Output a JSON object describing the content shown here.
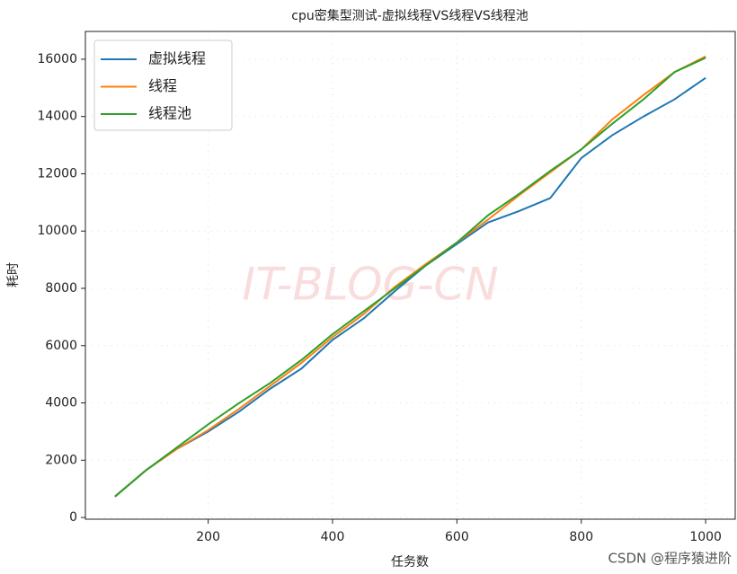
{
  "chart_data": {
    "type": "line",
    "title": "cpu密集型测试-虚拟线程VS线程VS线程池",
    "x_label": "任务数",
    "y_label": "耗时",
    "x": [
      50,
      100,
      150,
      200,
      250,
      300,
      350,
      400,
      450,
      500,
      550,
      600,
      650,
      700,
      750,
      800,
      850,
      900,
      950,
      1000
    ],
    "series": [
      {
        "name": "虚拟线程",
        "color": "#1f77b4",
        "values": [
          730,
          1650,
          2400,
          3000,
          3700,
          4500,
          5200,
          6200,
          6950,
          7900,
          8800,
          9550,
          10300,
          10700,
          11150,
          12550,
          13350,
          14000,
          14600,
          15350
        ]
      },
      {
        "name": "线程",
        "color": "#ff7f0e",
        "values": [
          730,
          1650,
          2400,
          3050,
          3800,
          4600,
          5400,
          6300,
          7100,
          8050,
          8850,
          9600,
          10400,
          11250,
          12050,
          12850,
          13900,
          14750,
          15550,
          16100
        ]
      },
      {
        "name": "线程池",
        "color": "#2ca02c",
        "values": [
          730,
          1650,
          2450,
          3250,
          4000,
          4700,
          5500,
          6400,
          7200,
          8000,
          8800,
          9600,
          10550,
          11300,
          12100,
          12850,
          13750,
          14600,
          15550,
          16050
        ]
      }
    ],
    "xlim": [
      2.5,
      1047.5
    ],
    "xticks": [
      200,
      400,
      600,
      800,
      1000
    ],
    "ylim": [
      -60,
      16970
    ],
    "yticks": [
      0,
      2000,
      4000,
      6000,
      8000,
      10000,
      12000,
      14000,
      16000
    ],
    "grid": true,
    "legend_position": "upper-left",
    "watermark": "IT-BLOG-CN",
    "credit": "CSDN @程序猿进阶"
  }
}
